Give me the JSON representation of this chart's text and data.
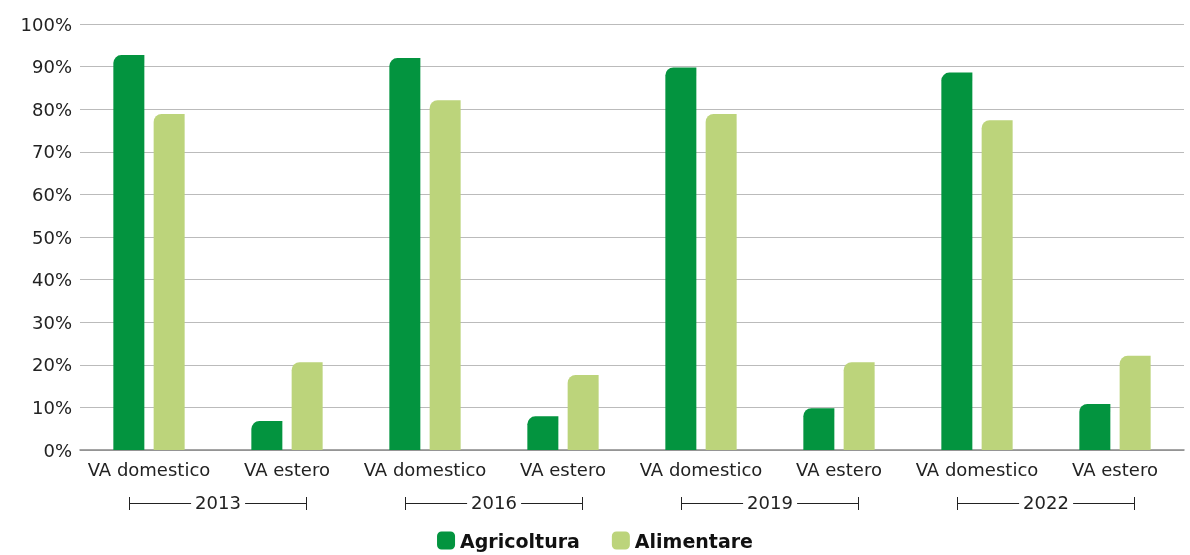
{
  "chart_data": {
    "type": "bar",
    "categories": [
      "VA domestico",
      "VA estero",
      "VA domestico",
      "VA estero",
      "VA domestico",
      "VA estero",
      "VA domestico",
      "VA estero"
    ],
    "series": [
      {
        "name": "Agricoltura",
        "color": "#03943f",
        "values": [
          92.7,
          6.8,
          92.0,
          7.9,
          89.8,
          9.8,
          88.6,
          10.8
        ]
      },
      {
        "name": "Alimentare",
        "color": "#bcd47b",
        "values": [
          78.9,
          20.6,
          82.1,
          17.6,
          78.9,
          20.6,
          77.4,
          22.1
        ]
      }
    ],
    "annotations": [
      "2013",
      "2016",
      "2019",
      "2022"
    ],
    "ylim": [
      0,
      100
    ],
    "yticks": [
      {
        "value": 0,
        "label": "0%"
      },
      {
        "value": 10,
        "label": "10%"
      },
      {
        "value": 20,
        "label": "20%"
      },
      {
        "value": 30,
        "label": "30%"
      },
      {
        "value": 40,
        "label": "40%"
      },
      {
        "value": 50,
        "label": "50%"
      },
      {
        "value": 60,
        "label": "60%"
      },
      {
        "value": 70,
        "label": "70%"
      },
      {
        "value": 80,
        "label": "80%"
      },
      {
        "value": 90,
        "label": "90%"
      },
      {
        "value": 100,
        "label": "100%"
      }
    ],
    "grid": "y",
    "legend": "bottom"
  }
}
